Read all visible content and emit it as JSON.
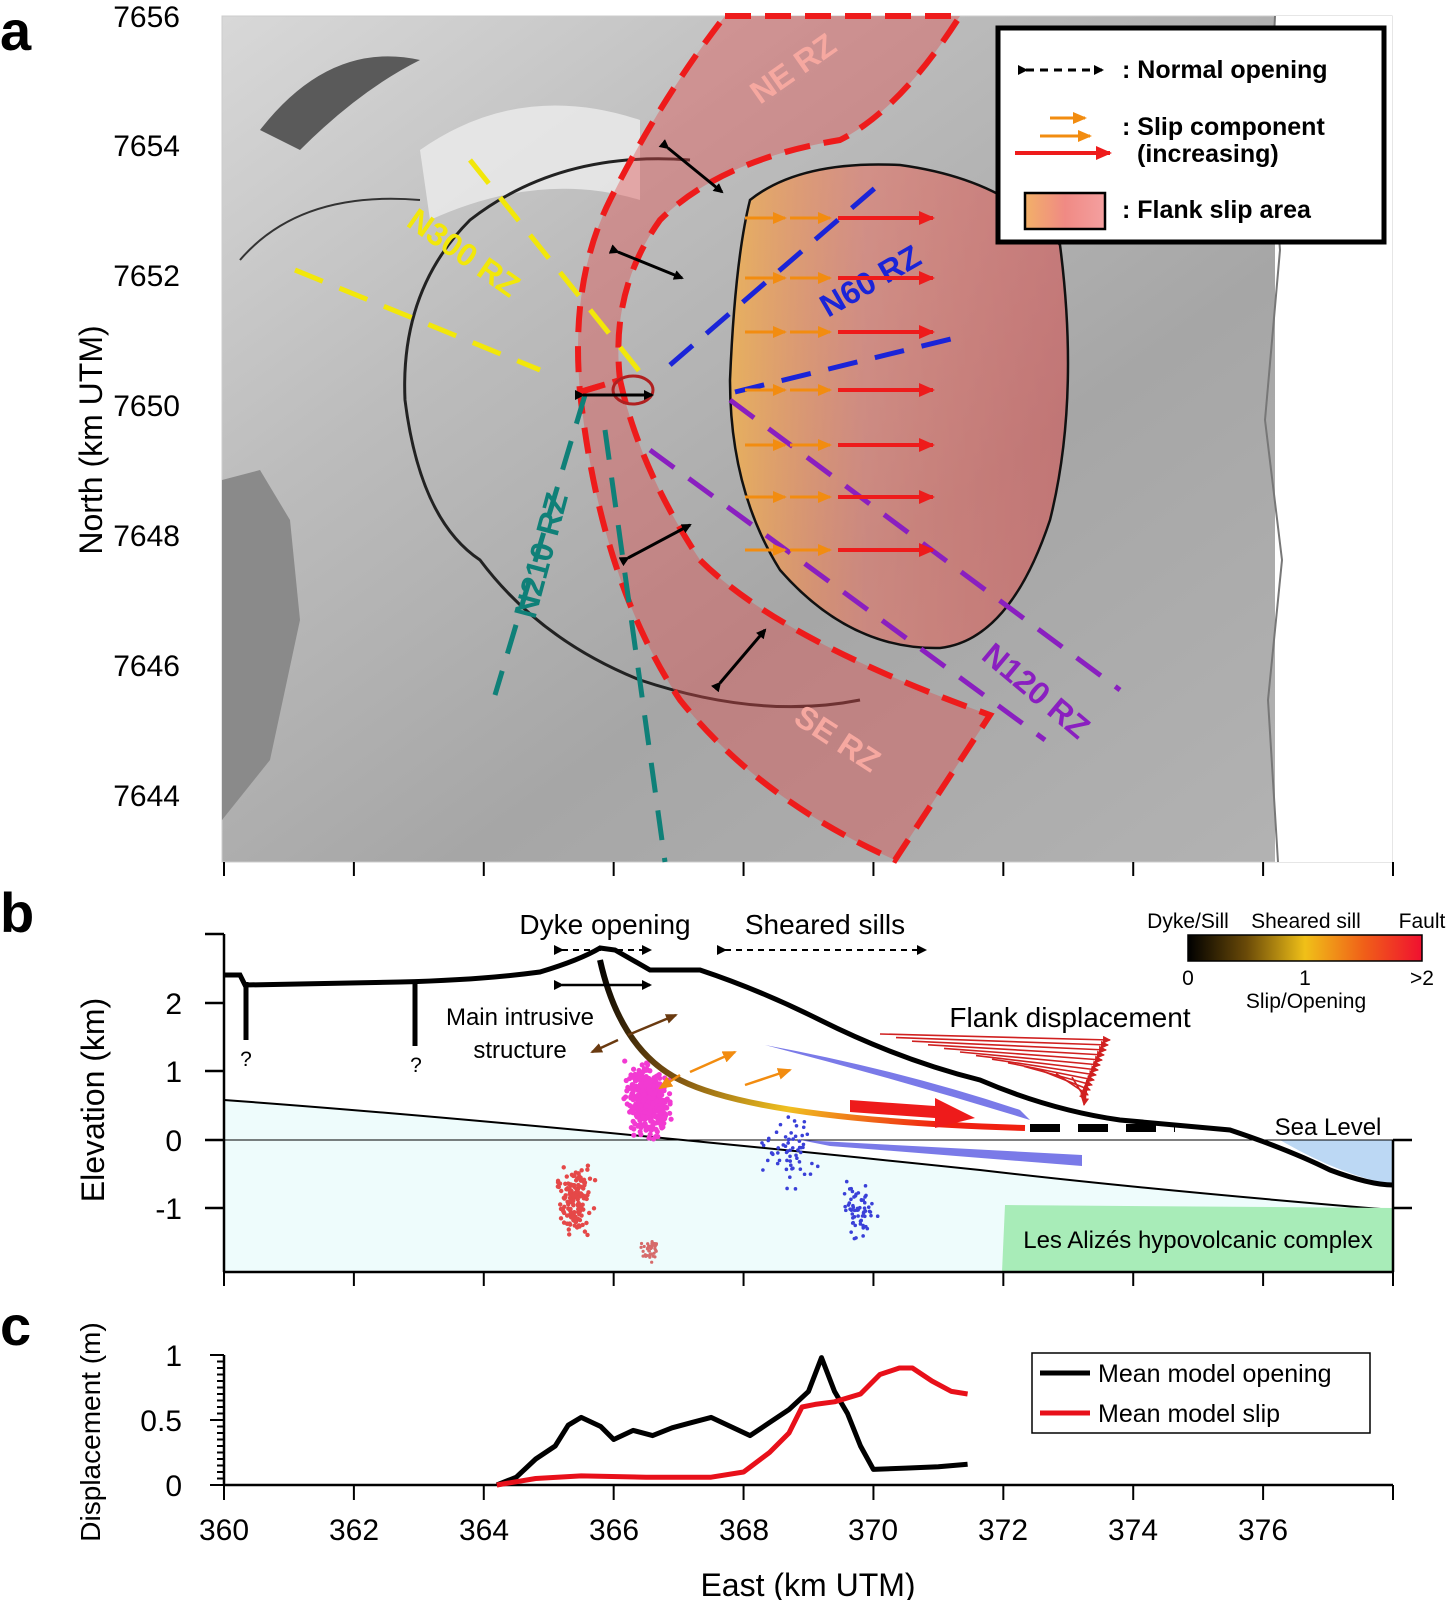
{
  "panels": {
    "a": {
      "letter": "a",
      "ylabel": "North (km UTM)",
      "ytick_labels": [
        "7656",
        "7654",
        "7652",
        "7650",
        "7648",
        "7646",
        "7644"
      ],
      "rift_zones": [
        {
          "label": "NE RZ",
          "color": "#f6a8a0"
        },
        {
          "label": "N300 RZ",
          "color": "#f2e70a"
        },
        {
          "label": "N60 RZ",
          "color": "#1a24d8"
        },
        {
          "label": "N210 RZ",
          "color": "#0f8078"
        },
        {
          "label": "N120 RZ",
          "color": "#8a1fc0"
        },
        {
          "label": "SE RZ",
          "color": "#f6a8a0"
        }
      ],
      "legend": {
        "normal_opening": ": Normal opening",
        "slip_line1": ": Slip component",
        "slip_line2": "(increasing)",
        "flank_area": ": Flank slip area"
      }
    },
    "b": {
      "letter": "b",
      "ylabel": "Elevation (km)",
      "ytick_labels": [
        "2",
        "1",
        "0",
        "-1"
      ],
      "annotations": {
        "dyke_opening": "Dyke opening",
        "sheared_sills": "Sheared sills",
        "main_intrusive_1": "Main intrusive",
        "main_intrusive_2": "structure",
        "flank_displacement": "Flank displacement",
        "sea_level": "Sea Level",
        "complex": "Les Alizés hypovolcanic complex",
        "question_1": "?",
        "question_2": "?"
      },
      "colorbar": {
        "label_left": "Dyke/Sill",
        "label_mid": "Sheared sill",
        "label_right": "Fault",
        "tick_0": "0",
        "tick_1": "1",
        "tick_2": ">2",
        "title": "Slip/Opening"
      }
    },
    "c": {
      "letter": "c",
      "ylabel": "Displacement (m)",
      "xlabel": "East (km UTM)",
      "ytick_labels": [
        "1",
        "0.5",
        "0"
      ],
      "xtick_labels": [
        "360",
        "362",
        "364",
        "366",
        "368",
        "370",
        "372",
        "374",
        "376"
      ],
      "legend": {
        "opening": "Mean model opening",
        "slip": "Mean model slip"
      }
    }
  },
  "chart_data": {
    "type": "line",
    "xlabel": "East (km UTM)",
    "ylabel": "Displacement (m)",
    "xlim": [
      360,
      378
    ],
    "ylim": [
      0,
      1
    ],
    "series": [
      {
        "name": "Mean model opening",
        "color": "#000000",
        "x": [
          364.2,
          364.5,
          364.8,
          365.1,
          365.3,
          365.5,
          365.8,
          366.0,
          366.3,
          366.6,
          366.9,
          367.2,
          367.5,
          367.8,
          368.1,
          368.4,
          368.7,
          369.0,
          369.2,
          369.4,
          369.6,
          369.8,
          370.0,
          370.5,
          371.0,
          371.45
        ],
        "y": [
          0.0,
          0.06,
          0.2,
          0.3,
          0.46,
          0.52,
          0.45,
          0.35,
          0.42,
          0.38,
          0.44,
          0.48,
          0.52,
          0.45,
          0.38,
          0.48,
          0.58,
          0.72,
          0.98,
          0.72,
          0.55,
          0.3,
          0.12,
          0.13,
          0.14,
          0.16
        ]
      },
      {
        "name": "Mean model slip",
        "color": "#e8101a",
        "x": [
          364.2,
          364.8,
          365.5,
          366.5,
          367.5,
          368.0,
          368.4,
          368.7,
          368.9,
          369.1,
          369.4,
          369.8,
          370.1,
          370.4,
          370.6,
          370.9,
          371.2,
          371.45
        ],
        "y": [
          0.0,
          0.05,
          0.07,
          0.06,
          0.06,
          0.1,
          0.25,
          0.4,
          0.6,
          0.62,
          0.64,
          0.7,
          0.85,
          0.9,
          0.9,
          0.8,
          0.72,
          0.7
        ]
      }
    ]
  }
}
